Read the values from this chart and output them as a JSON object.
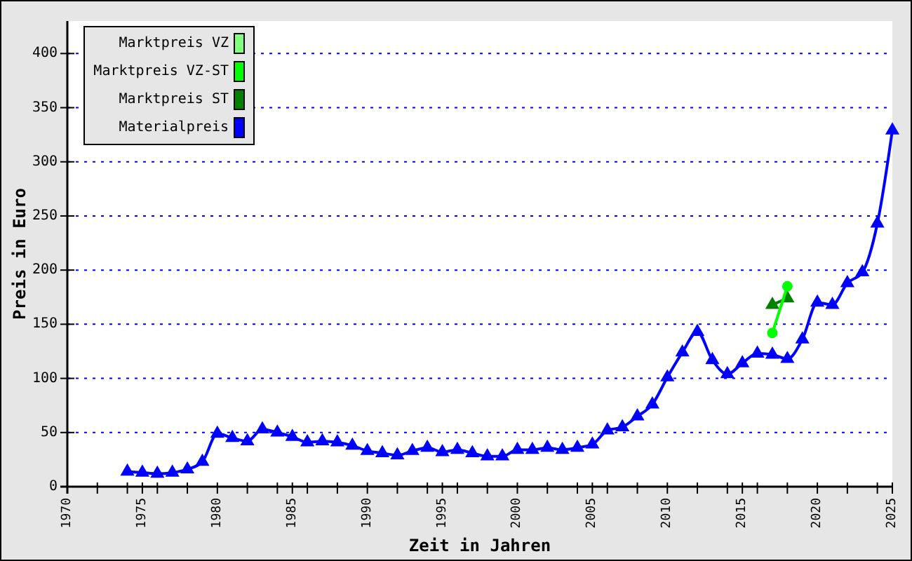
{
  "chart_data": {
    "type": "line",
    "xlabel": "Zeit in Jahren",
    "ylabel": "Preis in Euro",
    "xlim": [
      1970,
      2025
    ],
    "xticks": [
      1970,
      {
        "value": 1972,
        "label": null
      },
      {
        "value": 1974,
        "label": null
      },
      1975,
      {
        "value": 1976,
        "label": null
      },
      {
        "value": 1978,
        "label": null
      },
      1980,
      {
        "value": 1982,
        "label": null
      },
      {
        "value": 1984,
        "label": null
      },
      1985,
      {
        "value": 1986,
        "label": null
      },
      {
        "value": 1988,
        "label": null
      },
      1990,
      {
        "value": 1992,
        "label": null
      },
      {
        "value": 1994,
        "label": null
      },
      1995,
      {
        "value": 1996,
        "label": null
      },
      {
        "value": 1998,
        "label": null
      },
      2000,
      {
        "value": 2002,
        "label": null
      },
      {
        "value": 2004,
        "label": null
      },
      2005,
      {
        "value": 2006,
        "label": null
      },
      {
        "value": 2008,
        "label": null
      },
      2010,
      {
        "value": 2012,
        "label": null
      },
      {
        "value": 2014,
        "label": null
      },
      2015,
      {
        "value": 2016,
        "label": null
      },
      {
        "value": 2018,
        "label": null
      },
      2020,
      {
        "value": 2022,
        "label": null
      },
      {
        "value": 2024,
        "label": null
      },
      2025
    ],
    "ylim": [
      0,
      430
    ],
    "yticks": [
      0,
      50,
      100,
      150,
      200,
      250,
      300,
      350,
      400
    ],
    "grid": "y",
    "legend": "top left",
    "series": [
      {
        "name": "Marktpreis VZ",
        "color": "#80ff80"
      },
      {
        "name": "Marktpreis VZ-ST",
        "color": "#00ff00",
        "marker": "circle",
        "x": [
          2017,
          2018
        ],
        "values": [
          142,
          185
        ]
      },
      {
        "name": "Marktpreis ST",
        "color": "#008000",
        "marker": "triangle",
        "x": [
          2017,
          2018
        ],
        "values": [
          168,
          174
        ]
      },
      {
        "name": "Materialpreis",
        "color": "#0000ff",
        "marker": "triangle",
        "x": [
          1974,
          1975,
          1976,
          1977,
          1978,
          1979,
          1980,
          1981,
          1982,
          1983,
          1984,
          1985,
          1986,
          1987,
          1988,
          1989,
          1990,
          1991,
          1992,
          1993,
          1994,
          1995,
          1996,
          1997,
          1998,
          1999,
          2000,
          2001,
          2002,
          2003,
          2004,
          2005,
          2006,
          2007,
          2008,
          2009,
          2010,
          2011,
          2012,
          2013,
          2014,
          2015,
          2016,
          2017,
          2018,
          2019,
          2020,
          2021,
          2022,
          2023,
          2024,
          2025
        ],
        "values": [
          14,
          13,
          12,
          13,
          16,
          23,
          49,
          45,
          42,
          53,
          50,
          46,
          41,
          42,
          41,
          38,
          33,
          31,
          29,
          33,
          36,
          32,
          34,
          31,
          28,
          28,
          34,
          34,
          36,
          34,
          36,
          39,
          52,
          55,
          65,
          76,
          101,
          124,
          143,
          117,
          104,
          114,
          123,
          122,
          118,
          136,
          170,
          168,
          188,
          198,
          243,
          329
        ]
      }
    ]
  }
}
